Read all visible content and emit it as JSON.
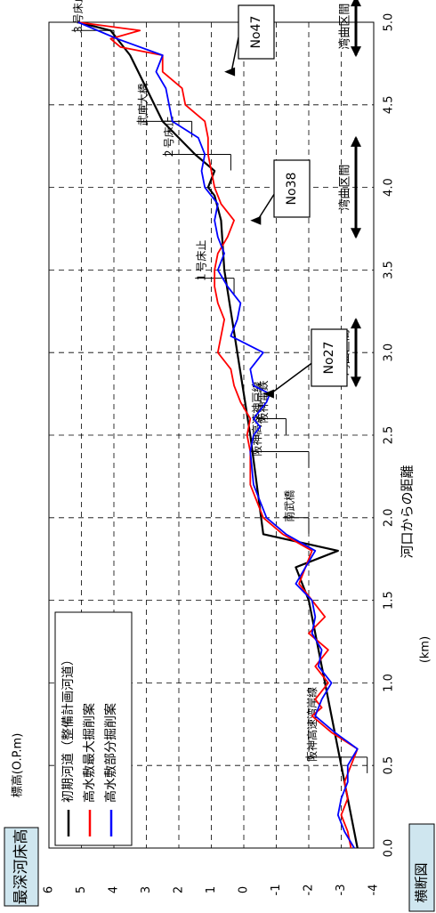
{
  "header": {
    "title": "最深河床高",
    "bottom_label": "横断図"
  },
  "chart_data": {
    "type": "line",
    "title": "最深河床高",
    "xlabel": "河口からの距離",
    "xunit": "(km)",
    "ylabel": "標高(O.P.m)",
    "xlim": [
      0,
      5
    ],
    "ylim": [
      -4,
      6
    ],
    "xticks": [
      {
        "v": 0,
        "label": "0.0"
      },
      {
        "v": 0.5,
        "label": "0.5"
      },
      {
        "v": 1,
        "label": "1.0"
      },
      {
        "v": 1.5,
        "label": "1.5"
      },
      {
        "v": 2,
        "label": "2.0"
      },
      {
        "v": 2.5,
        "label": "2.5"
      },
      {
        "v": 3,
        "label": "3.0"
      },
      {
        "v": 3.5,
        "label": "3.5"
      },
      {
        "v": 4,
        "label": "4.0"
      },
      {
        "v": 4.5,
        "label": "4.5"
      },
      {
        "v": 5,
        "label": "5.0"
      }
    ],
    "yticks": [
      {
        "v": -4,
        "label": "-4"
      },
      {
        "v": -3,
        "label": "-3"
      },
      {
        "v": -2,
        "label": "-2"
      },
      {
        "v": -1,
        "label": "-1"
      },
      {
        "v": 0,
        "label": "0"
      },
      {
        "v": 1,
        "label": "1"
      },
      {
        "v": 2,
        "label": "2"
      },
      {
        "v": 3,
        "label": "3"
      },
      {
        "v": 4,
        "label": "4"
      },
      {
        "v": 5,
        "label": "5"
      },
      {
        "v": 6,
        "label": "6"
      }
    ],
    "grid": true,
    "legend_position": "top-left",
    "series": [
      {
        "name": "初期河道（整備計画河道）",
        "color": "#000000",
        "points": [
          [
            0,
            -3.5
          ],
          [
            0.5,
            -3.0
          ],
          [
            1.0,
            -2.5
          ],
          [
            1.5,
            -2.0
          ],
          [
            1.7,
            -1.6
          ],
          [
            1.8,
            -2.9
          ],
          [
            1.9,
            -0.6
          ],
          [
            2.5,
            -0.2
          ],
          [
            3.0,
            0.2
          ],
          [
            3.5,
            0.6
          ],
          [
            3.8,
            0.7
          ],
          [
            3.95,
            0.9
          ],
          [
            4.0,
            1.1
          ],
          [
            4.1,
            0.9
          ],
          [
            4.2,
            1.5
          ],
          [
            4.4,
            2.5
          ],
          [
            4.8,
            3.5
          ],
          [
            4.95,
            4.1
          ],
          [
            5.0,
            5.1
          ]
        ]
      },
      {
        "name": "高水敷最大掘削案",
        "color": "#ff0000",
        "points": [
          [
            0,
            -3.3
          ],
          [
            0.1,
            -3.2
          ],
          [
            0.2,
            -3.0
          ],
          [
            0.3,
            -3.2
          ],
          [
            0.4,
            -3.1
          ],
          [
            0.5,
            -3.3
          ],
          [
            0.6,
            -3.5
          ],
          [
            0.7,
            -2.7
          ],
          [
            0.8,
            -2.1
          ],
          [
            0.85,
            -2.4
          ],
          [
            0.9,
            -2.2
          ],
          [
            1.0,
            -2.6
          ],
          [
            1.1,
            -2.2
          ],
          [
            1.2,
            -2.6
          ],
          [
            1.3,
            -2.0
          ],
          [
            1.4,
            -2.5
          ],
          [
            1.5,
            -2.1
          ],
          [
            1.6,
            -1.7
          ],
          [
            1.7,
            -1.9
          ],
          [
            1.8,
            -2.1
          ],
          [
            1.9,
            -1.2
          ],
          [
            2.0,
            -0.6
          ],
          [
            2.2,
            -0.2
          ],
          [
            2.4,
            -0.2
          ],
          [
            2.5,
            -0.1
          ],
          [
            2.6,
            -0.2
          ],
          [
            2.7,
            0.1
          ],
          [
            2.8,
            0.3
          ],
          [
            2.9,
            0.4
          ],
          [
            3.0,
            0.8
          ],
          [
            3.2,
            0.6
          ],
          [
            3.3,
            0.8
          ],
          [
            3.4,
            0.9
          ],
          [
            3.5,
            0.9
          ],
          [
            3.6,
            0.8
          ],
          [
            3.7,
            0.5
          ],
          [
            3.8,
            0.3
          ],
          [
            3.9,
            0.7
          ],
          [
            4.0,
            0.9
          ],
          [
            4.1,
            1.0
          ],
          [
            4.2,
            1.1
          ],
          [
            4.3,
            1.1
          ],
          [
            4.4,
            1.2
          ],
          [
            4.5,
            1.8
          ],
          [
            4.6,
            1.9
          ],
          [
            4.7,
            2.5
          ],
          [
            4.8,
            2.5
          ],
          [
            4.85,
            3.8
          ],
          [
            4.9,
            4.1
          ],
          [
            4.95,
            3.2
          ],
          [
            5.0,
            5.1
          ]
        ]
      },
      {
        "name": "高水敷部分掘削案",
        "color": "#0000ff",
        "points": [
          [
            0,
            -3.4
          ],
          [
            0.1,
            -3.1
          ],
          [
            0.2,
            -2.9
          ],
          [
            0.3,
            -3.0
          ],
          [
            0.4,
            -3.2
          ],
          [
            0.5,
            -3.2
          ],
          [
            0.6,
            -3.5
          ],
          [
            0.7,
            -2.8
          ],
          [
            0.8,
            -2.2
          ],
          [
            0.9,
            -2.4
          ],
          [
            1.0,
            -2.7
          ],
          [
            1.1,
            -2.3
          ],
          [
            1.2,
            -2.4
          ],
          [
            1.3,
            -2.1
          ],
          [
            1.4,
            -2.2
          ],
          [
            1.5,
            -2.1
          ],
          [
            1.6,
            -1.6
          ],
          [
            1.7,
            -1.9
          ],
          [
            1.8,
            -2.2
          ],
          [
            1.9,
            -1.3
          ],
          [
            2.0,
            -0.7
          ],
          [
            2.2,
            -0.3
          ],
          [
            2.4,
            -0.2
          ],
          [
            2.5,
            -0.3
          ],
          [
            2.55,
            -0.5
          ],
          [
            2.6,
            -0.3
          ],
          [
            2.7,
            -0.7
          ],
          [
            2.75,
            -0.8
          ],
          [
            2.8,
            -0.3
          ],
          [
            2.9,
            -0.2
          ],
          [
            3.0,
            -0.6
          ],
          [
            3.1,
            0.4
          ],
          [
            3.2,
            0.2
          ],
          [
            3.3,
            0.1
          ],
          [
            3.4,
            0.5
          ],
          [
            3.5,
            0.8
          ],
          [
            3.6,
            0.6
          ],
          [
            3.7,
            0.8
          ],
          [
            3.8,
            0.9
          ],
          [
            3.9,
            0.8
          ],
          [
            4.0,
            1.2
          ],
          [
            4.1,
            1.3
          ],
          [
            4.2,
            1.2
          ],
          [
            4.3,
            1.4
          ],
          [
            4.4,
            2.2
          ],
          [
            4.5,
            2.3
          ],
          [
            4.6,
            2.4
          ],
          [
            4.7,
            2.7
          ],
          [
            4.8,
            2.5
          ],
          [
            4.9,
            3.9
          ],
          [
            5.0,
            5.1
          ]
        ]
      }
    ],
    "annotations": {
      "structures": [
        {
          "label": "阪神高速湾岸線",
          "x": 0.55,
          "y_start": -3.8,
          "y_end": -1.9
        },
        {
          "label": "南武橋",
          "x": 2.0,
          "y_start": -2.0,
          "y_end": -1.2
        },
        {
          "label": "阪神高速神戸線",
          "x": 2.4,
          "y_start": -2.0,
          "y_end": -0.2
        },
        {
          "label": "阪神電鉄",
          "x": 2.6,
          "y_start": -1.3,
          "y_end": -0.4
        },
        {
          "label": "１号床止",
          "x": 3.45,
          "y_start": 0.3,
          "y_end": 1.5
        },
        {
          "label": "２号床止",
          "x": 4.2,
          "y_start": 0.4,
          "y_end": 2.5
        },
        {
          "label": "武庫大橋",
          "x": 4.4,
          "y_start": 1.6,
          "y_end": 3.3
        },
        {
          "label": "３号床止",
          "x": 4.95,
          "y_start": 4.0,
          "y_end": 5.3
        }
      ],
      "bends": [
        {
          "label": "湾曲区間",
          "x_start": 2.8,
          "x_end": 3.2
        },
        {
          "label": "湾曲区間",
          "x_start": 3.7,
          "x_end": 4.3
        },
        {
          "label": "湾曲区間",
          "x_start": 4.8,
          "x_end": 5.15
        }
      ],
      "markers": [
        {
          "label": "No27",
          "tip": [
            2.75,
            -0.6
          ]
        },
        {
          "label": "No38",
          "tip": [
            3.8,
            -0.2
          ]
        },
        {
          "label": "No47",
          "tip": [
            4.7,
            0.6
          ]
        }
      ]
    }
  }
}
